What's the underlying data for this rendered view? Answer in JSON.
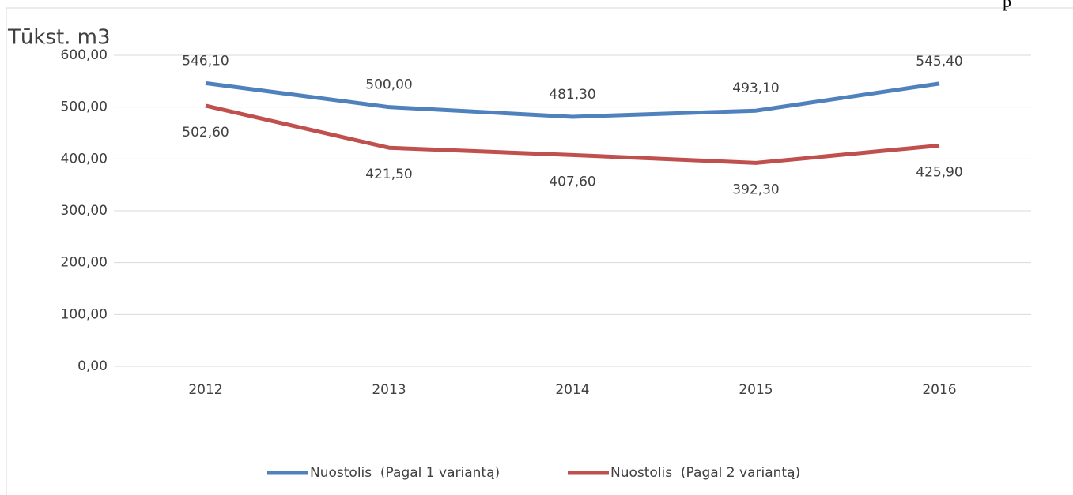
{
  "page_fragment": "p",
  "chart_data": {
    "type": "line",
    "title": "Tūkst. m3",
    "categories": [
      "2012",
      "2013",
      "2014",
      "2015",
      "2016"
    ],
    "series": [
      {
        "name": "Nuostolis  (Pagal 1 variantą)",
        "color": "#4f81bd",
        "values": [
          546.1,
          500.0,
          481.3,
          493.1,
          545.4
        ],
        "value_labels": [
          "546,10",
          "500,00",
          "481,30",
          "493,10",
          "545,40"
        ],
        "label_position": "above"
      },
      {
        "name": "Nuostolis  (Pagal 2 variantą)",
        "color": "#c0504d",
        "values": [
          502.6,
          421.5,
          407.6,
          392.3,
          425.9
        ],
        "value_labels": [
          "502,60",
          "421,50",
          "407,60",
          "392,30",
          "425,90"
        ],
        "label_position": "below"
      }
    ],
    "ylim": [
      0,
      600
    ],
    "yticks": [
      {
        "value": 0,
        "label": "0,00"
      },
      {
        "value": 100,
        "label": "100,00"
      },
      {
        "value": 200,
        "label": "200,00"
      },
      {
        "value": 300,
        "label": "300,00"
      },
      {
        "value": 400,
        "label": "400,00"
      },
      {
        "value": 500,
        "label": "500,00"
      },
      {
        "value": 600,
        "label": "600,00"
      }
    ],
    "grid": true,
    "legend": "bottom"
  }
}
